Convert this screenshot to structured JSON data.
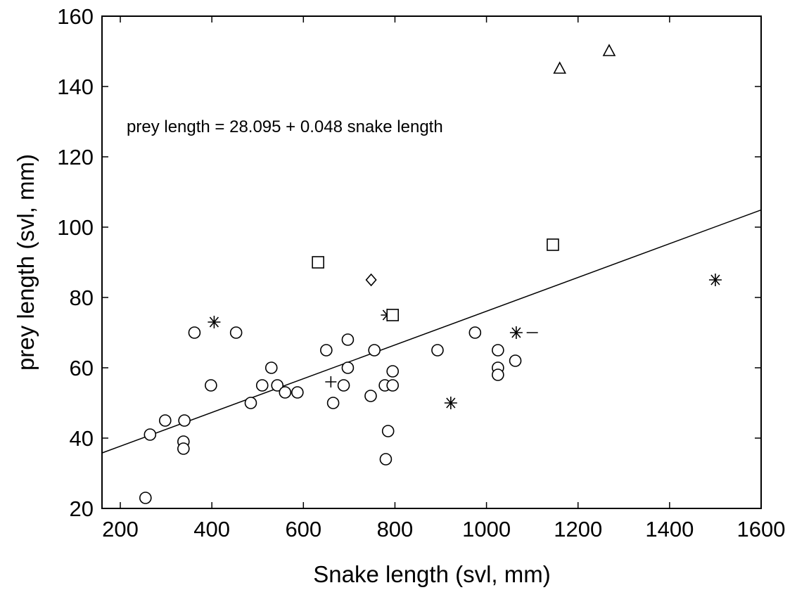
{
  "chart_data": {
    "type": "scatter",
    "xlabel": "Snake length (svl, mm)",
    "ylabel": "prey length (svl, mm)",
    "xlim": [
      160,
      1600
    ],
    "ylim": [
      20,
      160
    ],
    "xticks": [
      200,
      400,
      600,
      800,
      1000,
      1200,
      1400,
      1600
    ],
    "yticks": [
      20,
      40,
      60,
      80,
      100,
      120,
      140,
      160
    ],
    "annotation": "prey length = 28.095 + 0.048 snake length",
    "regression": {
      "intercept": 28.095,
      "slope": 0.048,
      "x_range": [
        160,
        1600
      ]
    },
    "marker_colors": {
      "stroke": "#000000",
      "fill": "#ffffff"
    },
    "series": [
      {
        "marker": "circle",
        "points": [
          {
            "x": 255,
            "y": 23
          },
          {
            "x": 265,
            "y": 41
          },
          {
            "x": 298,
            "y": 45
          },
          {
            "x": 340,
            "y": 45
          },
          {
            "x": 338,
            "y": 39
          },
          {
            "x": 338,
            "y": 37
          },
          {
            "x": 362,
            "y": 70
          },
          {
            "x": 398,
            "y": 55
          },
          {
            "x": 453,
            "y": 70
          },
          {
            "x": 485,
            "y": 50
          },
          {
            "x": 510,
            "y": 55
          },
          {
            "x": 530,
            "y": 60
          },
          {
            "x": 543,
            "y": 55
          },
          {
            "x": 560,
            "y": 53
          },
          {
            "x": 587,
            "y": 53
          },
          {
            "x": 650,
            "y": 65
          },
          {
            "x": 665,
            "y": 50
          },
          {
            "x": 688,
            "y": 55
          },
          {
            "x": 697,
            "y": 68
          },
          {
            "x": 697,
            "y": 60
          },
          {
            "x": 747,
            "y": 52
          },
          {
            "x": 755,
            "y": 65
          },
          {
            "x": 778,
            "y": 55
          },
          {
            "x": 780,
            "y": 34
          },
          {
            "x": 785,
            "y": 42
          },
          {
            "x": 795,
            "y": 59
          },
          {
            "x": 795,
            "y": 55
          },
          {
            "x": 893,
            "y": 65
          },
          {
            "x": 975,
            "y": 70
          },
          {
            "x": 1025,
            "y": 65
          },
          {
            "x": 1025,
            "y": 60
          },
          {
            "x": 1025,
            "y": 58
          },
          {
            "x": 1063,
            "y": 62
          }
        ]
      },
      {
        "marker": "asterisk",
        "points": [
          {
            "x": 405,
            "y": 73
          },
          {
            "x": 783,
            "y": 75
          },
          {
            "x": 922,
            "y": 50
          },
          {
            "x": 1065,
            "y": 70
          },
          {
            "x": 1500,
            "y": 85
          }
        ]
      },
      {
        "marker": "square",
        "points": [
          {
            "x": 632,
            "y": 90
          },
          {
            "x": 795,
            "y": 75
          },
          {
            "x": 1145,
            "y": 95
          }
        ]
      },
      {
        "marker": "triangle",
        "points": [
          {
            "x": 1160,
            "y": 145
          },
          {
            "x": 1268,
            "y": 150
          }
        ]
      },
      {
        "marker": "diamond",
        "points": [
          {
            "x": 748,
            "y": 85
          }
        ]
      },
      {
        "marker": "plus",
        "points": [
          {
            "x": 660,
            "y": 56
          }
        ]
      },
      {
        "marker": "dash",
        "points": [
          {
            "x": 1100,
            "y": 70
          }
        ]
      }
    ]
  }
}
